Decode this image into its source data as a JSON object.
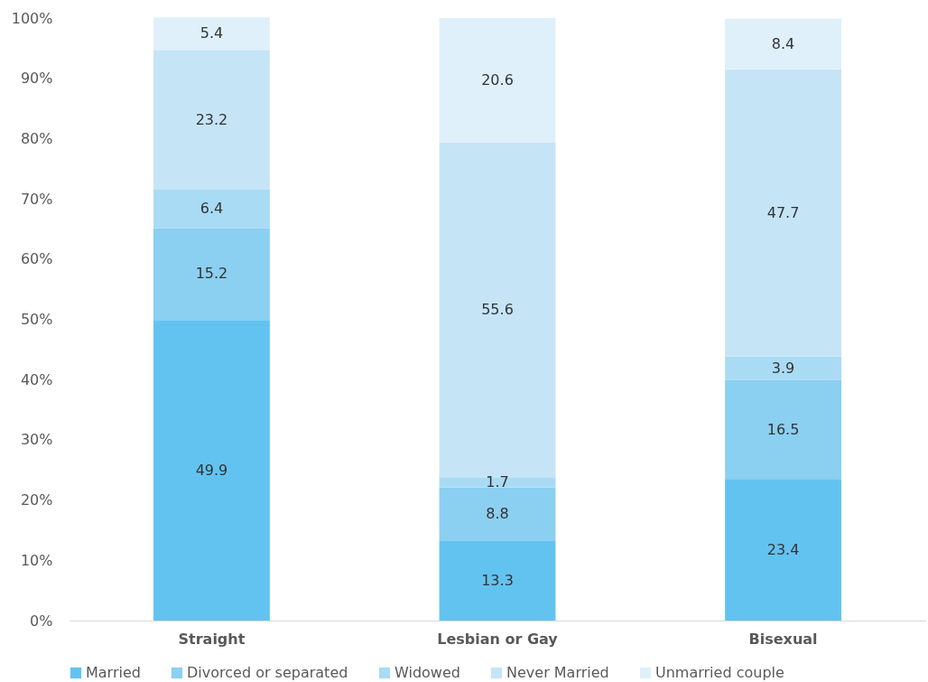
{
  "chart_data": {
    "type": "bar",
    "stacked": true,
    "data_labels": true,
    "legend": "bottom",
    "categories": [
      "Straight",
      "Lesbian or Gay",
      "Bisexual"
    ],
    "series": [
      {
        "name": "Married",
        "color": "#63c3f0",
        "values": [
          49.9,
          13.3,
          23.4
        ]
      },
      {
        "name": "Divorced or separated",
        "color": "#8bcff1",
        "values": [
          15.2,
          8.8,
          16.5
        ]
      },
      {
        "name": "Widowed",
        "color": "#a9dbf5",
        "values": [
          6.4,
          1.7,
          3.9
        ]
      },
      {
        "name": "Never Married",
        "color": "#c5e5f7",
        "values": [
          23.2,
          55.6,
          47.7
        ]
      },
      {
        "name": "Unmarried couple",
        "color": "#dff0fb",
        "values": [
          5.4,
          20.6,
          8.4
        ]
      }
    ],
    "ylim": [
      0,
      100
    ],
    "yticks": [
      {
        "value": 0,
        "label": "0%"
      },
      {
        "value": 10,
        "label": "10%"
      },
      {
        "value": 20,
        "label": "20%"
      },
      {
        "value": 30,
        "label": "30%"
      },
      {
        "value": 40,
        "label": "40%"
      },
      {
        "value": 50,
        "label": "50%"
      },
      {
        "value": 60,
        "label": "60%"
      },
      {
        "value": 70,
        "label": "70%"
      },
      {
        "value": 80,
        "label": "80%"
      },
      {
        "value": 90,
        "label": "90%"
      },
      {
        "value": 100,
        "label": "100%"
      }
    ]
  }
}
